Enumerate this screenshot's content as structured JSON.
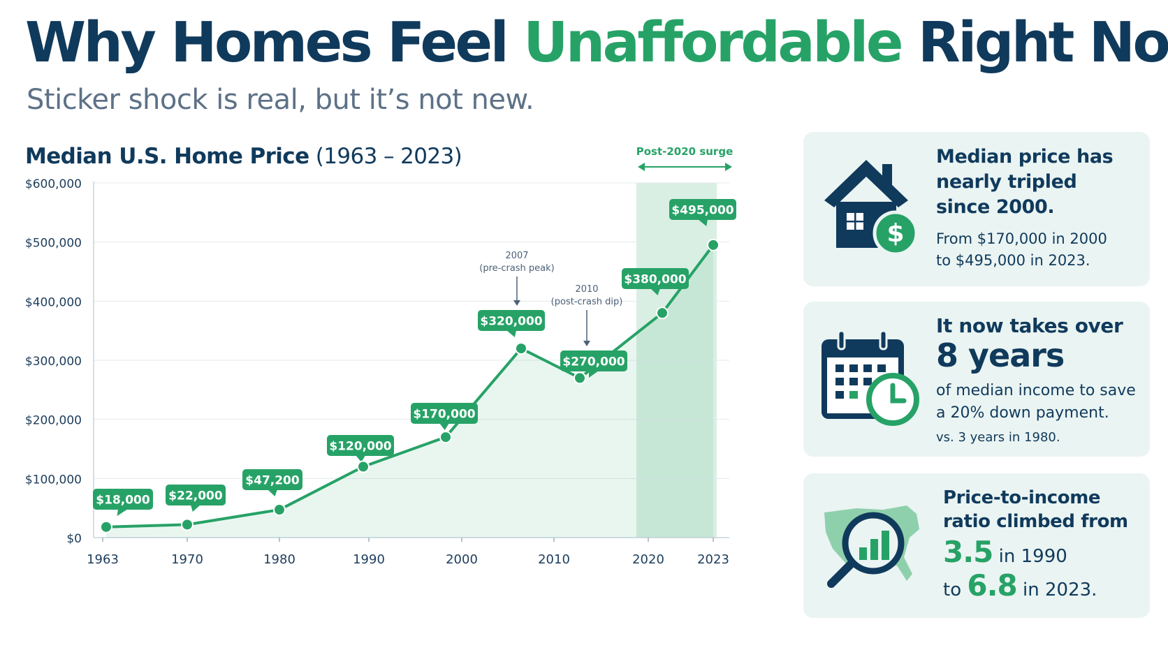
{
  "headline": {
    "part1": "Why Homes Feel ",
    "accent": "Unaffordable",
    "part2": " Right Now"
  },
  "subhead": "Sticker shock is real, but it’s not new.",
  "chart_title": {
    "bold": "Median U.S. Home Price",
    "range": " (1963 – 2023)"
  },
  "colors": {
    "navy": "#103a5c",
    "green": "#27a267",
    "card_bg": "#eaf4f2",
    "surge_band": "#d9efe3"
  },
  "chart_data": {
    "type": "line",
    "title": "Median U.S. Home Price (1963 – 2023)",
    "xlabel": "",
    "ylabel": "",
    "ylim": [
      0,
      600000
    ],
    "yticks": [
      0,
      100000,
      200000,
      300000,
      400000,
      500000,
      600000
    ],
    "ytick_labels": [
      "$0",
      "$100,000",
      "$200,000",
      "$300,000",
      "$400,000",
      "$500,000",
      "$600,000"
    ],
    "xtick_labels": [
      "1963",
      "1970",
      "1980",
      "1990",
      "2000",
      "2010",
      "2020",
      "2023"
    ],
    "points": [
      {
        "x": 1963,
        "y": 18000,
        "label": "$18,000"
      },
      {
        "x": 1970,
        "y": 22000,
        "label": "$22,000"
      },
      {
        "x": 1980,
        "y": 47200,
        "label": "$47,200"
      },
      {
        "x": 1990,
        "y": 120000,
        "label": "$120,000"
      },
      {
        "x": 2000,
        "y": 170000,
        "label": "$170,000"
      },
      {
        "x": 2007,
        "y": 320000,
        "label": "$320,000"
      },
      {
        "x": 2010,
        "y": 270000,
        "label": "$270,000"
      },
      {
        "x": 2020,
        "y": 380000,
        "label": "$380,000"
      },
      {
        "x": 2023,
        "y": 495000,
        "label": "$495,000"
      }
    ],
    "annotations": [
      {
        "x": 2007,
        "line1": "2007",
        "line2": "(pre-crash peak)"
      },
      {
        "x": 2010,
        "line1": "2010",
        "line2": "(post-crash dip)"
      }
    ],
    "highlight": {
      "label": "Post-2020 surge"
    },
    "grid": true,
    "legend": "none"
  },
  "cards": {
    "price": {
      "icon": "house-dollar-icon",
      "head_lines": [
        "Median price has",
        "nearly tripled",
        "since 2000."
      ],
      "body_lines": [
        "From $170,000 in 2000",
        "to $495,000 in 2023."
      ]
    },
    "savings": {
      "icon": "calendar-clock-icon",
      "head": "It now takes over",
      "big": "8 years",
      "body_lines": [
        "of median income to save",
        "a 20% down payment."
      ],
      "note": "vs. 3 years in 1980."
    },
    "ratio": {
      "icon": "map-magnifier-icon",
      "head_lines": [
        "Price-to-income",
        "ratio climbed from"
      ],
      "from_value": "3.5",
      "from_suffix": " in 1990",
      "to_prefix": "to ",
      "to_value": "6.8",
      "to_suffix": " in 2023."
    }
  }
}
